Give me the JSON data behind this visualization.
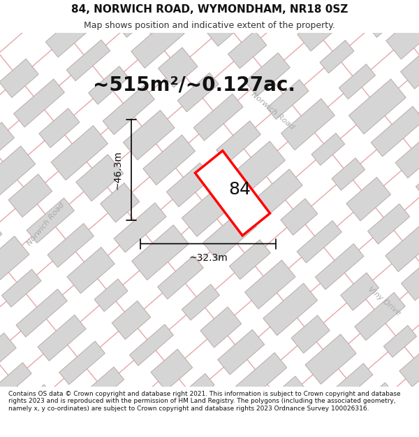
{
  "title": "84, NORWICH ROAD, WYMONDHAM, NR18 0SZ",
  "subtitle": "Map shows position and indicative extent of the property.",
  "area_label": "~515m²/~0.127ac.",
  "number_label": "84",
  "dim_height": "~46.3m",
  "dim_width": "~32.3m",
  "road_label_diag": "Norwich Road",
  "road_label_left": "Norwich Road",
  "road_label_right": "Viny Drive",
  "footer": "Contains OS data © Crown copyright and database right 2021. This information is subject to Crown copyright and database rights 2023 and is reproduced with the permission of HM Land Registry. The polygons (including the associated geometry, namely x, y co-ordinates) are subject to Crown copyright and database rights 2023 Ordnance Survey 100026316.",
  "map_bg": "#eeecec",
  "block_fill": "#d5d5d5",
  "block_edge": "#bbaaaa",
  "road_line_color": "#e8aaaa",
  "highlight_color": "#ff0000",
  "title_fontsize": 11,
  "subtitle_fontsize": 9,
  "area_fontsize": 20,
  "number_fontsize": 18,
  "dim_fontsize": 10,
  "footer_fontsize": 6.5
}
